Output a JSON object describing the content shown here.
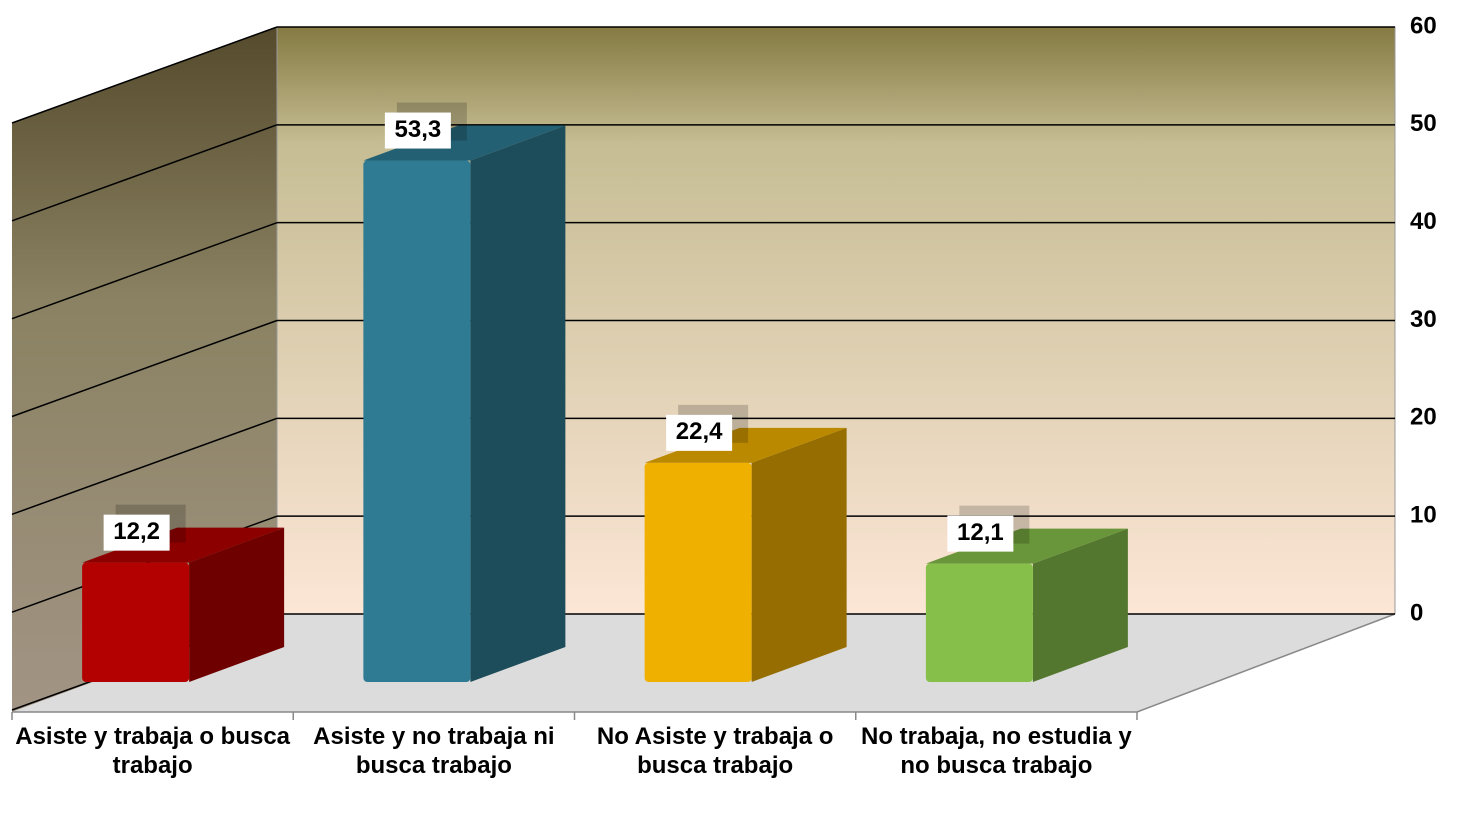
{
  "chart_data": {
    "type": "bar3d",
    "categories": [
      "Asiste y trabaja o busca trabajo",
      "Asiste y no trabaja ni busca trabajo",
      "No Asiste y trabaja o busca trabajo",
      "No trabaja, no estudia y no busca trabajo"
    ],
    "values": [
      12.2,
      53.3,
      22.4,
      12.1
    ],
    "value_labels": [
      "12,2",
      "53,3",
      "22,4",
      "12,1"
    ],
    "colors": [
      "#b30000",
      "#2e7b93",
      "#f0b000",
      "#86c04a"
    ],
    "ylim": [
      0,
      60
    ],
    "yticks": [
      0,
      10,
      20,
      30,
      40,
      50,
      60
    ],
    "grid": true
  }
}
